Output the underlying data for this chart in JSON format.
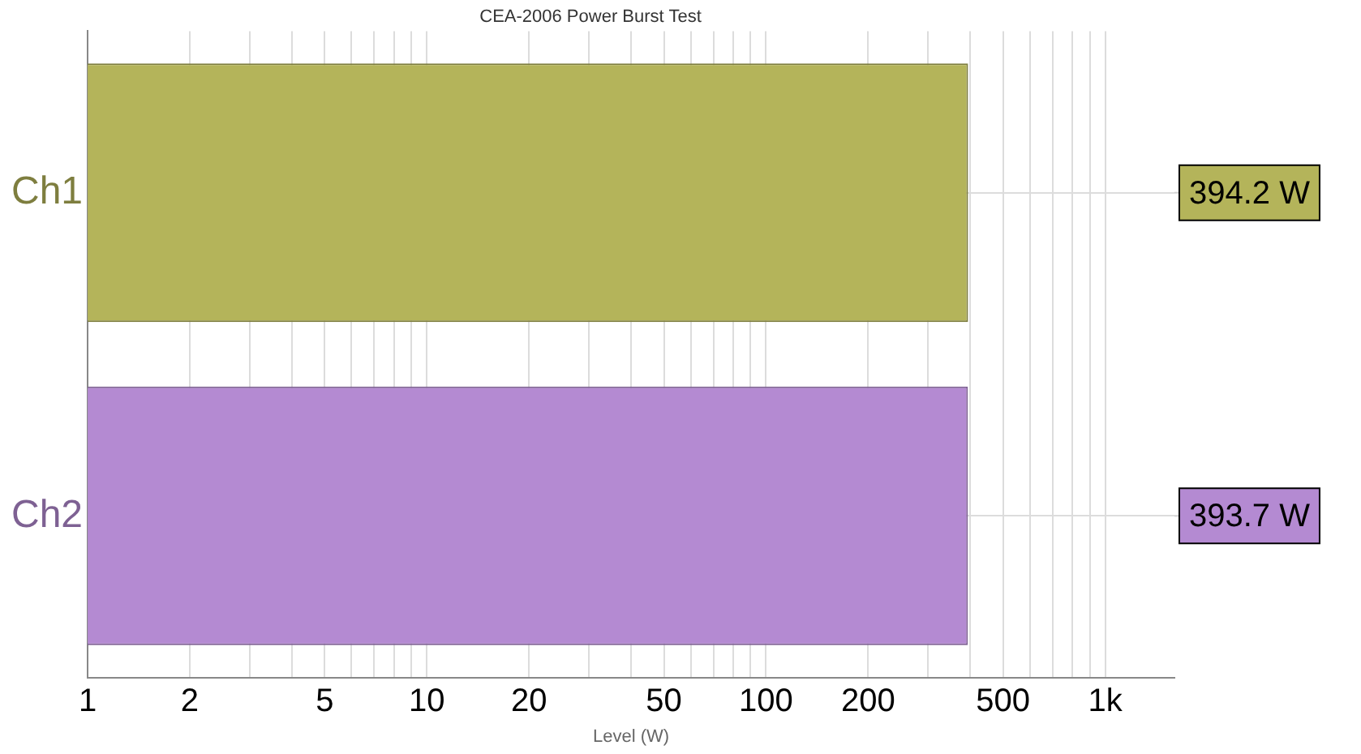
{
  "chart_data": {
    "type": "bar",
    "orientation": "horizontal",
    "title": "CEA-2006 Power Burst Test",
    "xlabel": "Level (W)",
    "categories": [
      "Ch1",
      "Ch2"
    ],
    "values": [
      394.2,
      393.7
    ],
    "colors": [
      "#b4b45a",
      "#b48ad2"
    ],
    "value_labels": [
      "394.2 W",
      "393.7 W"
    ],
    "log": "x",
    "xlim": [
      1,
      1600
    ],
    "xticks": [
      1,
      2,
      {
        "value": 3,
        "label": null
      },
      {
        "value": 4,
        "label": null
      },
      5,
      {
        "value": 6,
        "label": null
      },
      {
        "value": 7,
        "label": null
      },
      {
        "value": 8,
        "label": null
      },
      {
        "value": 9,
        "label": null
      },
      10,
      20,
      {
        "value": 30,
        "label": null
      },
      {
        "value": 40,
        "label": null
      },
      50,
      {
        "value": 60,
        "label": null
      },
      {
        "value": 70,
        "label": null
      },
      {
        "value": 80,
        "label": null
      },
      {
        "value": 90,
        "label": null
      },
      100,
      200,
      {
        "value": 300,
        "label": null
      },
      {
        "value": 400,
        "label": null
      },
      500,
      {
        "value": 600,
        "label": null
      },
      {
        "value": 700,
        "label": null
      },
      {
        "value": 800,
        "label": null
      },
      {
        "value": 900,
        "label": null
      },
      {
        "value": 1000,
        "label": "1k"
      }
    ],
    "grid": true,
    "legend": false
  }
}
